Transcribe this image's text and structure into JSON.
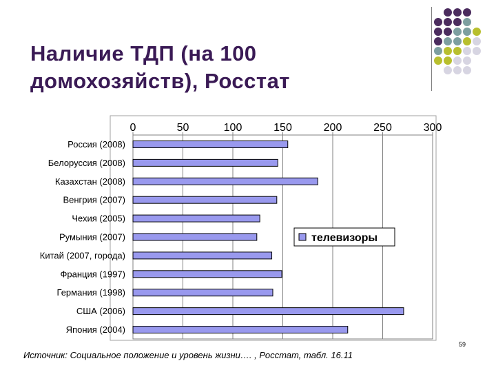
{
  "slide": {
    "title": "Наличие ТДП (на 100 домохозяйств), Росстат",
    "source": "Источник: Социальное положение и уровень жизни…. , Росстат, табл. 16.11",
    "page_number": "59",
    "dot_colors": [
      "#4b2c5e",
      "#7d9fa0",
      "#b8bf2e",
      "#d7d5e2"
    ]
  },
  "chart_data": {
    "type": "bar",
    "orientation": "horizontal",
    "categories": [
      "Россия (2008)",
      "Белоруссия (2008)",
      "Казахстан (2008)",
      "Венгрия (2007)",
      "Чехия (2005)",
      "Румыния (2007)",
      "Китай (2007, города)",
      "Франция (1997)",
      "Германия (1998)",
      "США (2006)",
      "Япония (2004)"
    ],
    "series": [
      {
        "name": "телевизоры",
        "color": "#9999ee",
        "values": [
          155,
          145,
          185,
          144,
          127,
          124,
          139,
          149,
          140,
          271,
          215
        ]
      }
    ],
    "xlim": [
      0,
      300
    ],
    "xticks": [
      0,
      50,
      100,
      150,
      200,
      250,
      300
    ],
    "axis_position": "top",
    "grid": true,
    "legend_position": "right"
  }
}
